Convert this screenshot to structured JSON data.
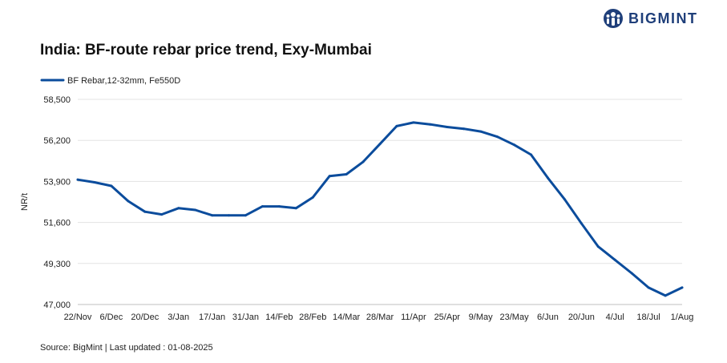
{
  "brand": {
    "name": "BIGMINT",
    "primary_color": "#0b4c9c",
    "logo_color": "#1f3f7a"
  },
  "chart_data": {
    "type": "line",
    "title": "India: BF-route rebar price trend, Exy-Mumbai",
    "ylabel": "NR/t",
    "xlabel": "",
    "ylim": [
      47000,
      58500
    ],
    "yticks": [
      47000,
      49300,
      51600,
      53900,
      56200,
      58500
    ],
    "ytick_labels": [
      "47,000",
      "49,300",
      "51,600",
      "53,900",
      "56,200",
      "58,500"
    ],
    "xtick_labels": [
      "22/Nov",
      "6/Dec",
      "20/Dec",
      "3/Jan",
      "17/Jan",
      "31/Jan",
      "14/Feb",
      "28/Feb",
      "14/Mar",
      "28/Mar",
      "11/Apr",
      "25/Apr",
      "9/May",
      "23/May",
      "6/Jun",
      "20/Jun",
      "4/Jul",
      "18/Jul",
      "1/Aug"
    ],
    "grid": true,
    "legend_position": "top-left",
    "series": [
      {
        "name": "BF Rebar,12-32mm, Fe550D",
        "color": "#0b4c9c",
        "values": [
          54000,
          53850,
          53650,
          52800,
          52200,
          52050,
          52400,
          52300,
          52000,
          52000,
          52000,
          52500,
          52500,
          52400,
          53000,
          54200,
          54300,
          55000,
          56000,
          57000,
          57200,
          57100,
          56950,
          56850,
          56700,
          56400,
          55950,
          55400,
          54100,
          52900,
          51550,
          50250,
          49500,
          48750,
          47950,
          47500,
          47950
        ]
      }
    ]
  },
  "source_text": "Source: BigMint | Last updated : 01-08-2025"
}
